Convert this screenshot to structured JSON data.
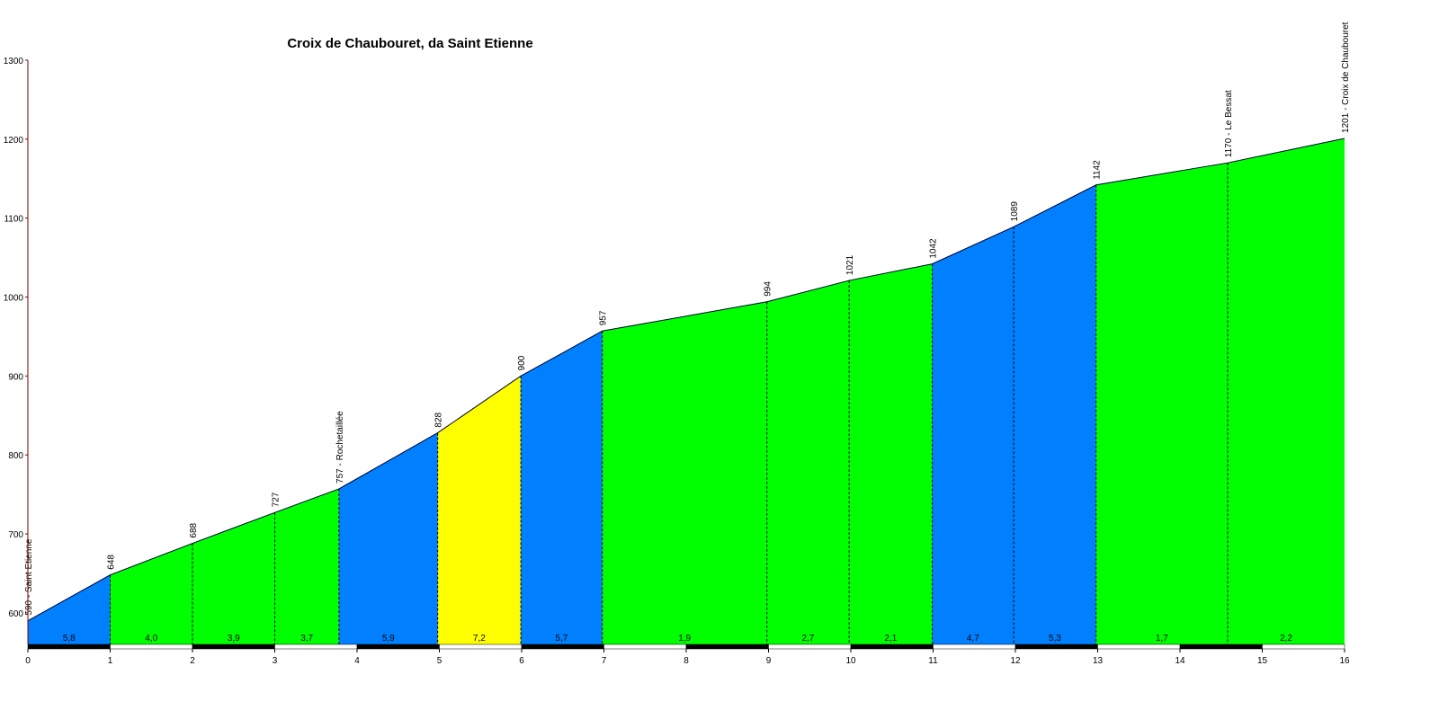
{
  "chart_data": {
    "type": "elevation-profile",
    "title": "Croix de Chaubouret, da Saint Etienne",
    "x": [
      0,
      1,
      2,
      3,
      3.78,
      4.98,
      5.99,
      6.98,
      8.98,
      9.98,
      10.99,
      11.98,
      12.98,
      14.58,
      16
    ],
    "values": [
      590,
      648,
      688,
      727,
      757,
      828,
      900,
      957,
      994,
      1021,
      1042,
      1089,
      1142,
      1170,
      1201
    ],
    "value_labels": [
      "590 - Saint Etienne",
      "648",
      "688",
      "727",
      "757 - Rochetaillée",
      "828",
      "900",
      "957",
      "994",
      "1021",
      "1042",
      "1089",
      "1142",
      "1170 - Le Bessat",
      "1201 - Croix de Chaubouret"
    ],
    "segment_slopes": [
      "5,8",
      "4,0",
      "3,9",
      "3,7",
      "5,9",
      "7,2",
      "5,7",
      "1,9",
      "2,7",
      "2,1",
      "4,7",
      "5,3",
      "1,7",
      "2,2"
    ],
    "segment_colors": [
      "#0080ff",
      "#00ff00",
      "#00ff00",
      "#00ff00",
      "#0080ff",
      "#ffff00",
      "#0080ff",
      "#00ff00",
      "#00ff00",
      "#00ff00",
      "#0080ff",
      "#0080ff",
      "#00ff00",
      "#00ff00"
    ],
    "xlim": [
      0,
      16
    ],
    "ylim": [
      560,
      1300
    ],
    "xticks": [
      0,
      1,
      2,
      3,
      4,
      5,
      6,
      7,
      8,
      9,
      10,
      11,
      12,
      13,
      14,
      15,
      16
    ],
    "yticks": [
      600,
      700,
      800,
      900,
      1000,
      1100,
      1200,
      1300
    ]
  }
}
